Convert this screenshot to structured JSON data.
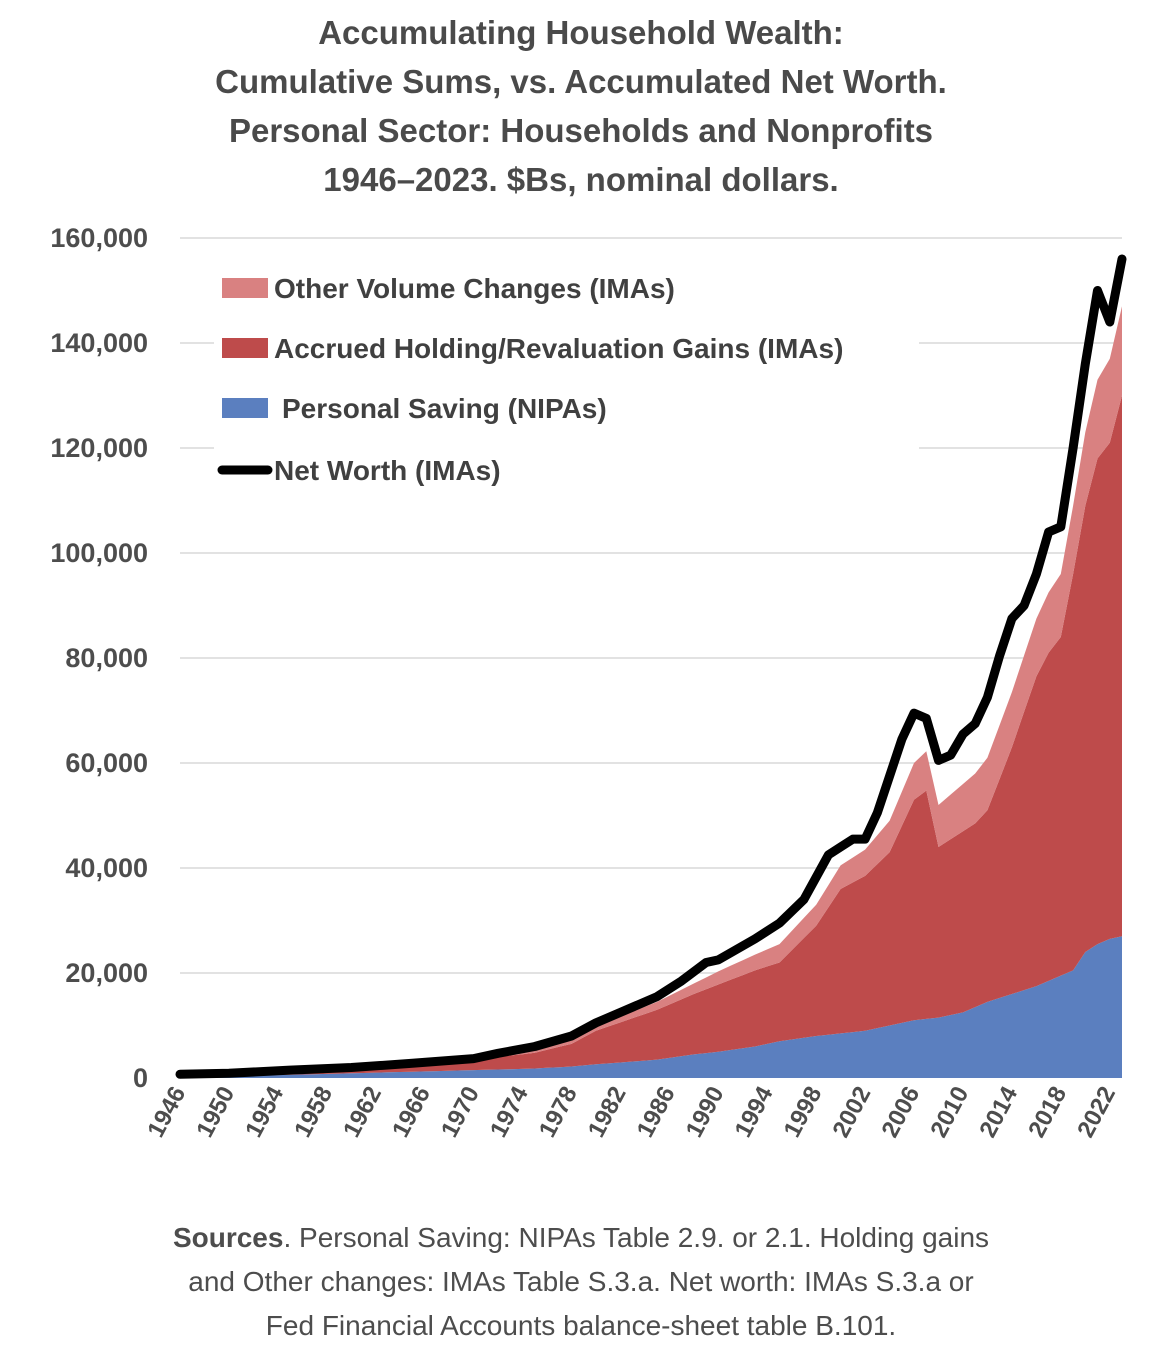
{
  "chart_data": {
    "type": "area",
    "title_lines": [
      "Accumulating Household Wealth:",
      "Cumulative Sums, vs. Accumulated Net Worth.",
      "Personal Sector: Households and Nonprofits",
      "1946–2023. $Bs, nominal dollars."
    ],
    "ylim": [
      0,
      160000
    ],
    "yticks": [
      "160,000",
      "140,000",
      "120,000",
      "100,000",
      "80,000",
      "60,000",
      "40,000",
      "20,000",
      "0"
    ],
    "ytick_values": [
      160000,
      140000,
      120000,
      100000,
      80000,
      60000,
      40000,
      20000,
      0
    ],
    "xlim": [
      1946,
      2023
    ],
    "xticks": [
      "1946",
      "1950",
      "1954",
      "1958",
      "1962",
      "1966",
      "1970",
      "1974",
      "1978",
      "1982",
      "1986",
      "1990",
      "1994",
      "1998",
      "2002",
      "2006",
      "2010",
      "2014",
      "2018",
      "2022"
    ],
    "xtick_values": [
      1946,
      1950,
      1954,
      1958,
      1962,
      1966,
      1970,
      1974,
      1978,
      1982,
      1986,
      1990,
      1994,
      1998,
      2002,
      2006,
      2010,
      2014,
      2018,
      2022
    ],
    "grid": true,
    "legend_position": "top-left",
    "series": [
      {
        "name": "Personal Saving (NIPAs)",
        "kind": "stacked-area",
        "color": "#5b7fbf",
        "x": [
          1946,
          1950,
          1955,
          1960,
          1965,
          1970,
          1975,
          1978,
          1980,
          1985,
          1988,
          1990,
          1993,
          1995,
          1998,
          2000,
          2002,
          2004,
          2006,
          2008,
          2010,
          2012,
          2014,
          2016,
          2018,
          2019,
          2020,
          2021,
          2022,
          2023
        ],
        "values": [
          200,
          400,
          600,
          900,
          1200,
          1500,
          1800,
          2200,
          2600,
          3500,
          4500,
          5000,
          6000,
          7000,
          8000,
          8500,
          9000,
          10000,
          11000,
          11500,
          12500,
          14500,
          16000,
          17500,
          19500,
          20500,
          24000,
          25500,
          26500,
          27000
        ]
      },
      {
        "name": "Accrued Holding/Revaluation Gains (IMAs)",
        "kind": "stacked-area",
        "color": "#be4b4b",
        "x": [
          1946,
          1950,
          1955,
          1960,
          1965,
          1970,
          1975,
          1978,
          1980,
          1985,
          1988,
          1990,
          1993,
          1995,
          1998,
          2000,
          2002,
          2004,
          2006,
          2007,
          2008,
          2009,
          2010,
          2011,
          2012,
          2014,
          2016,
          2017,
          2018,
          2019,
          2020,
          2021,
          2022,
          2023
        ],
        "values": [
          0,
          100,
          300,
          800,
          1300,
          2000,
          3000,
          4300,
          6400,
          9500,
          11500,
          12800,
          14500,
          15000,
          21000,
          27500,
          29500,
          33000,
          42000,
          43500,
          32500,
          33500,
          34500,
          35000,
          36500,
          47000,
          59000,
          62500,
          64500,
          75500,
          85000,
          92500,
          94500,
          103000
        ]
      },
      {
        "name": "Other Volume Changes (IMAs)",
        "kind": "stacked-area",
        "color": "#d98181",
        "x": [
          1946,
          1950,
          1955,
          1960,
          1965,
          1970,
          1975,
          1978,
          1980,
          1985,
          1988,
          1990,
          1993,
          1995,
          1998,
          2000,
          2002,
          2004,
          2006,
          2007,
          2008,
          2009,
          2010,
          2011,
          2012,
          2014,
          2016,
          2017,
          2018,
          2019,
          2020,
          2021,
          2022,
          2023
        ],
        "values": [
          100,
          100,
          200,
          300,
          400,
          500,
          600,
          700,
          900,
          1500,
          2000,
          2500,
          3000,
          3500,
          4000,
          4500,
          5000,
          6000,
          7000,
          7500,
          8000,
          8500,
          9000,
          9500,
          10000,
          10500,
          11000,
          11500,
          12000,
          13000,
          14000,
          15000,
          16000,
          17000
        ]
      },
      {
        "name": "Net Worth (IMAs)",
        "kind": "line",
        "color": "#000000",
        "x": [
          1946,
          1950,
          1955,
          1960,
          1965,
          1970,
          1972,
          1975,
          1978,
          1980,
          1982,
          1985,
          1987,
          1989,
          1990,
          1993,
          1995,
          1997,
          1999,
          2000,
          2001,
          2002,
          2003,
          2004,
          2005,
          2006,
          2007,
          2008,
          2009,
          2010,
          2011,
          2012,
          2013,
          2014,
          2015,
          2016,
          2017,
          2018,
          2019,
          2020,
          2021,
          2022,
          2023
        ],
        "values": [
          700,
          900,
          1500,
          2000,
          2800,
          3700,
          4700,
          6000,
          8000,
          10500,
          12500,
          15500,
          18500,
          22000,
          22500,
          26500,
          29500,
          34000,
          42500,
          44000,
          45500,
          45500,
          50500,
          57500,
          64500,
          69500,
          68500,
          60500,
          61500,
          65500,
          67500,
          72500,
          80500,
          87500,
          90000,
          96000,
          104000,
          105000,
          120000,
          136000,
          150000,
          144000,
          156000
        ]
      }
    ]
  },
  "sources": {
    "label": "Sources",
    "lines": [
      ". Personal Saving: NIPAs Table 2.9. or 2.1. Holding gains",
      "and Other changes: IMAs Table S.3.a. Net worth: IMAs S.3.a or",
      "Fed Financial Accounts balance-sheet table B.101."
    ]
  }
}
